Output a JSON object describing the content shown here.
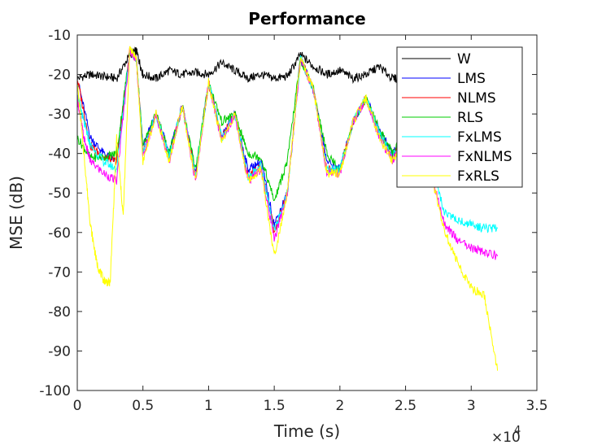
{
  "chart_data": {
    "type": "line",
    "title": "Performance",
    "xlabel": "Time (s)",
    "ylabel": "MSE (dB)",
    "xlim": [
      0,
      35000
    ],
    "ylim": [
      -100,
      -10
    ],
    "x_ticks": [
      0,
      5000,
      10000,
      15000,
      20000,
      25000,
      30000,
      35000
    ],
    "x_tick_labels": [
      "0",
      "0.5",
      "1",
      "1.5",
      "2",
      "2.5",
      "3",
      "3.5"
    ],
    "x_exponent_label": "×10",
    "x_exponent_power": "4",
    "y_ticks": [
      -100,
      -90,
      -80,
      -70,
      -60,
      -50,
      -40,
      -30,
      -20,
      -10
    ],
    "y_tick_labels": [
      "-100",
      "-90",
      "-80",
      "-70",
      "-60",
      "-50",
      "-40",
      "-30",
      "-20",
      "-10"
    ],
    "grid": false,
    "legend_position": "top-right",
    "series": [
      {
        "name": "W",
        "color": "#000000",
        "x": [
          0,
          1000,
          2000,
          3000,
          4000,
          4500,
          5000,
          6000,
          7000,
          8000,
          9000,
          10000,
          11000,
          12000,
          13000,
          14000,
          15000,
          16000,
          17000,
          18000,
          19000,
          20000,
          21000,
          22000,
          23000,
          24000,
          25000
        ],
        "y": [
          -21,
          -20,
          -20.5,
          -21,
          -15,
          -14,
          -20,
          -21,
          -19,
          -20,
          -19.5,
          -20,
          -17,
          -19,
          -21,
          -20,
          -21,
          -20.5,
          -15,
          -18,
          -20,
          -19,
          -21,
          -20,
          -18,
          -21,
          -21
        ]
      },
      {
        "name": "LMS",
        "color": "#0000ff",
        "x": [
          0,
          1000,
          2000,
          3000,
          4000,
          4500,
          5000,
          6000,
          7000,
          8000,
          9000,
          10000,
          11000,
          12000,
          13000,
          14000,
          15000,
          16000,
          17000,
          18000,
          19000,
          20000,
          21000,
          22000,
          23000,
          24000,
          25000
        ],
        "y": [
          -21,
          -36,
          -40,
          -42,
          -14,
          -16,
          -38,
          -30,
          -40,
          -28,
          -45,
          -22,
          -36,
          -30,
          -44,
          -42,
          -58,
          -50,
          -16,
          -24,
          -42,
          -44,
          -32,
          -26,
          -34,
          -40,
          -34
        ]
      },
      {
        "name": "NLMS",
        "color": "#ff0000",
        "x": [
          0,
          1000,
          2000,
          3000,
          4000,
          4500,
          5000,
          6000,
          7000,
          8000,
          9000,
          10000,
          11000,
          12000,
          13000,
          14000,
          15000,
          16000,
          17000,
          18000,
          19000,
          20000,
          21000,
          22000,
          23000,
          24000,
          25000
        ],
        "y": [
          -21,
          -38,
          -41,
          -42,
          -14,
          -16,
          -40,
          -30,
          -41,
          -28,
          -46,
          -22,
          -36,
          -30,
          -46,
          -43,
          -60,
          -50,
          -16,
          -24,
          -44,
          -44,
          -32,
          -26,
          -35,
          -41,
          -35
        ]
      },
      {
        "name": "RLS",
        "color": "#00cc00",
        "x": [
          0,
          1000,
          2000,
          3000,
          4000,
          4500,
          5000,
          6000,
          7000,
          8000,
          9000,
          10000,
          11000,
          12000,
          13000,
          14000,
          15000,
          16000,
          17000,
          18000,
          19000,
          20000,
          21000,
          22000,
          23000,
          24000,
          25000
        ],
        "y": [
          -36,
          -41,
          -41,
          -40,
          -14,
          -16,
          -38,
          -30,
          -40,
          -28,
          -44,
          -22,
          -32,
          -30,
          -40,
          -41,
          -52,
          -42,
          -16,
          -24,
          -40,
          -44,
          -32,
          -26,
          -34,
          -40,
          -34
        ]
      },
      {
        "name": "FxLMS",
        "color": "#00ffff",
        "x": [
          0,
          500,
          1000,
          2000,
          3000,
          4000,
          4500,
          5000,
          6000,
          7000,
          8000,
          9000,
          10000,
          11000,
          12000,
          13000,
          14000,
          15000,
          16000,
          17000,
          18000,
          19000,
          20000,
          21000,
          22000,
          23000,
          24000,
          25000,
          26000,
          27000,
          28000,
          29000,
          30000,
          31000,
          32000
        ],
        "y": [
          -25,
          -32,
          -38,
          -42,
          -44,
          -14,
          -16,
          -40,
          -30,
          -41,
          -28,
          -46,
          -22,
          -36,
          -30,
          -46,
          -43,
          -60,
          -50,
          -16,
          -24,
          -44,
          -44,
          -32,
          -26,
          -35,
          -41,
          -35,
          -40,
          -45,
          -55,
          -57,
          -58,
          -59,
          -59
        ]
      },
      {
        "name": "FxNLMS",
        "color": "#ff00ff",
        "x": [
          0,
          500,
          1000,
          2000,
          3000,
          4000,
          4500,
          5000,
          6000,
          7000,
          8000,
          9000,
          10000,
          11000,
          12000,
          13000,
          14000,
          15000,
          16000,
          17000,
          18000,
          19000,
          20000,
          21000,
          22000,
          23000,
          24000,
          25000,
          26000,
          27000,
          28000,
          29000,
          30000,
          31000,
          32000
        ],
        "y": [
          -26,
          -36,
          -42,
          -45,
          -47,
          -14,
          -16,
          -41,
          -30,
          -42,
          -28,
          -47,
          -22,
          -37,
          -30,
          -47,
          -44,
          -62,
          -50,
          -16,
          -24,
          -45,
          -45,
          -32,
          -26,
          -36,
          -42,
          -36,
          -41,
          -46,
          -58,
          -62,
          -64,
          -65,
          -66
        ]
      },
      {
        "name": "FxRLS",
        "color": "#ffff00",
        "x": [
          0,
          500,
          1000,
          1500,
          2000,
          2500,
          3000,
          3500,
          4000,
          4500,
          5000,
          6000,
          7000,
          8000,
          9000,
          10000,
          11000,
          12000,
          13000,
          14000,
          15000,
          16000,
          17000,
          18000,
          19000,
          20000,
          21000,
          22000,
          23000,
          24000,
          25000,
          26000,
          27000,
          28000,
          29000,
          30000,
          31000,
          32000
        ],
        "y": [
          -22,
          -40,
          -58,
          -68,
          -72,
          -73,
          -36,
          -56,
          -13,
          -16,
          -42,
          -30,
          -42,
          -28,
          -47,
          -22,
          -37,
          -30,
          -47,
          -44,
          -66,
          -50,
          -16,
          -24,
          -45,
          -45,
          -32,
          -26,
          -36,
          -42,
          -36,
          -41,
          -46,
          -60,
          -68,
          -74,
          -76,
          -95
        ]
      }
    ]
  }
}
